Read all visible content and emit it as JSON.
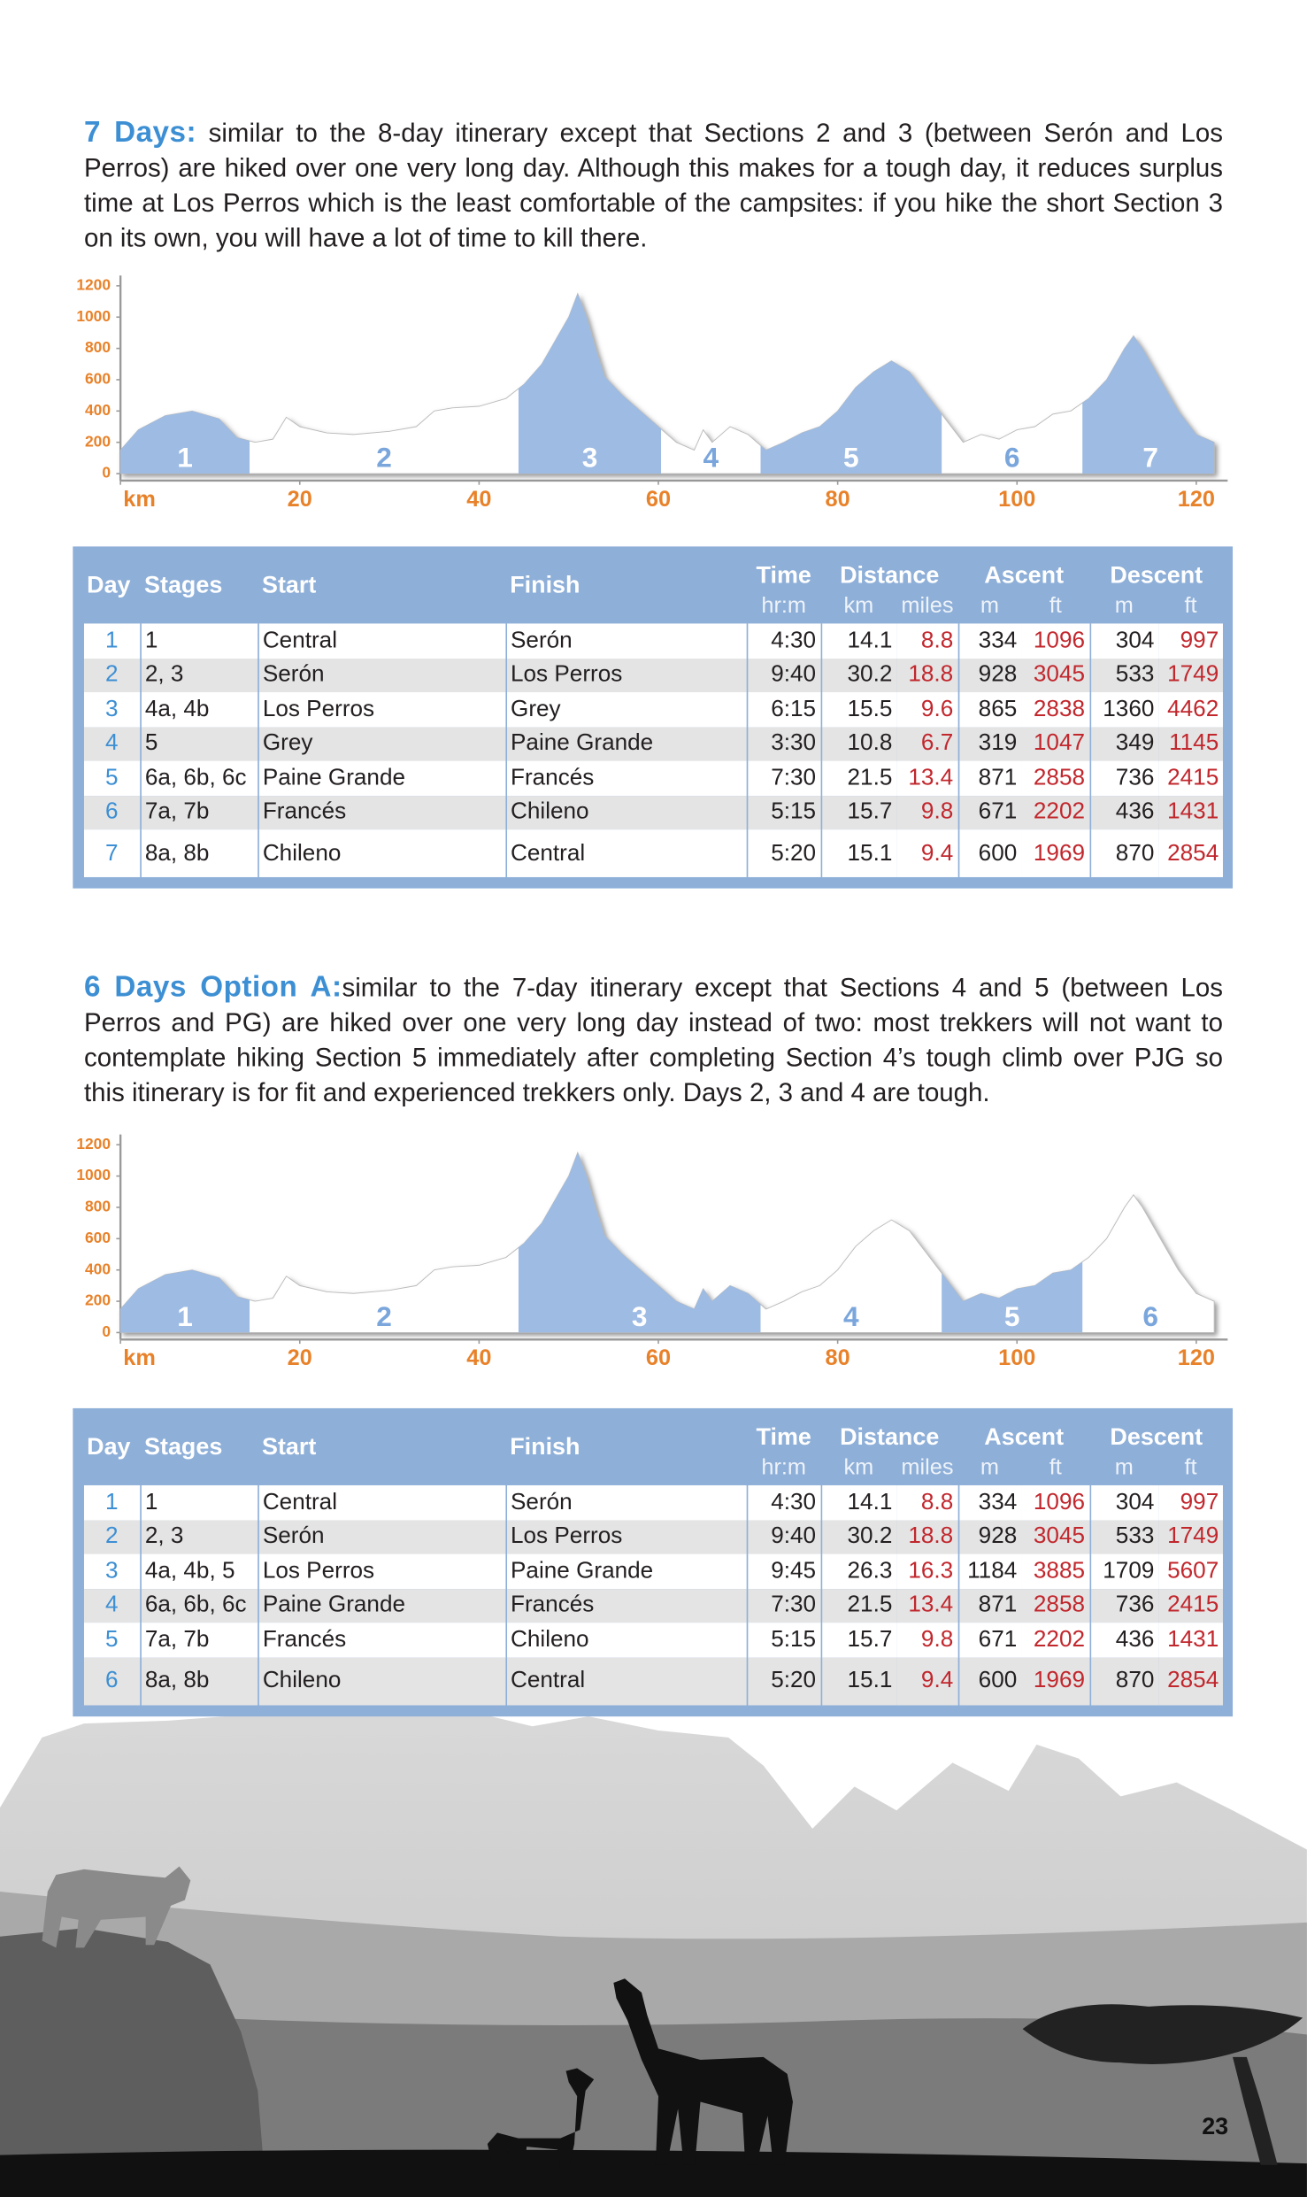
{
  "page_number": "23",
  "itineraries": [
    {
      "heading": "7 Days:",
      "text": "similar to the 8-day itinerary except that Sections 2 and 3 (between Serón and Los Perros) are hiked over one very long day. Although this makes for a tough day, it reduces surplus time at Los Perros which is the least comfortable of the campsites: if you hike the short Section 3 on its own, you will have a lot of time to kill there.",
      "table": {
        "header_top": [
          "Day",
          "Stages",
          "Start",
          "Finish",
          "Time",
          "Distance",
          "Ascent",
          "Descent"
        ],
        "header_sub": [
          "hr:m",
          "km",
          "miles",
          "m",
          "ft",
          "m",
          "ft"
        ],
        "rows": [
          [
            "1",
            "1",
            "Central",
            "Serón",
            "4:30",
            "14.1",
            "8.8",
            "334",
            "1096",
            "304",
            "997"
          ],
          [
            "2",
            "2, 3",
            "Serón",
            "Los Perros",
            "9:40",
            "30.2",
            "18.8",
            "928",
            "3045",
            "533",
            "1749"
          ],
          [
            "3",
            "4a, 4b",
            "Los Perros",
            "Grey",
            "6:15",
            "15.5",
            "9.6",
            "865",
            "2838",
            "1360",
            "4462"
          ],
          [
            "4",
            "5",
            "Grey",
            "Paine Grande",
            "3:30",
            "10.8",
            "6.7",
            "319",
            "1047",
            "349",
            "1145"
          ],
          [
            "5",
            "6a, 6b, 6c",
            "Paine Grande",
            "Francés",
            "7:30",
            "21.5",
            "13.4",
            "871",
            "2858",
            "736",
            "2415"
          ],
          [
            "6",
            "7a, 7b",
            "Francés",
            "Chileno",
            "5:15",
            "15.7",
            "9.8",
            "671",
            "2202",
            "436",
            "1431"
          ],
          [
            "7",
            "8a, 8b",
            "Chileno",
            "Central",
            "5:20",
            "15.1",
            "9.4",
            "600",
            "1969",
            "870",
            "2854"
          ]
        ]
      }
    },
    {
      "heading": "6 Days Option A:",
      "text": "similar to the 7-day itinerary except that Sections 4 and 5 (between Los Perros and PG) are hiked over one very long day instead of two: most trekkers will not want to contemplate hiking Section 5 immediately after completing Section 4’s tough climb over PJG so this itinerary is for fit and experienced trekkers only. Days 2, 3 and 4 are tough.",
      "table": {
        "header_top": [
          "Day",
          "Stages",
          "Start",
          "Finish",
          "Time",
          "Distance",
          "Ascent",
          "Descent"
        ],
        "header_sub": [
          "hr:m",
          "km",
          "miles",
          "m",
          "ft",
          "m",
          "ft"
        ],
        "rows": [
          [
            "1",
            "1",
            "Central",
            "Serón",
            "4:30",
            "14.1",
            "8.8",
            "334",
            "1096",
            "304",
            "997"
          ],
          [
            "2",
            "2, 3",
            "Serón",
            "Los Perros",
            "9:40",
            "30.2",
            "18.8",
            "928",
            "3045",
            "533",
            "1749"
          ],
          [
            "3",
            "4a, 4b, 5",
            "Los Perros",
            "Paine Grande",
            "9:45",
            "26.3",
            "16.3",
            "1184",
            "3885",
            "1709",
            "5607"
          ],
          [
            "4",
            "6a, 6b, 6c",
            "Paine Grande",
            "Francés",
            "7:30",
            "21.5",
            "13.4",
            "871",
            "2858",
            "736",
            "2415"
          ],
          [
            "5",
            "7a, 7b",
            "Francés",
            "Chileno",
            "5:15",
            "15.7",
            "9.8",
            "671",
            "2202",
            "436",
            "1431"
          ],
          [
            "6",
            "8a, 8b",
            "Chileno",
            "Central",
            "5:20",
            "15.1",
            "9.4",
            "600",
            "1969",
            "870",
            "2854"
          ]
        ]
      }
    }
  ],
  "chart_data": [
    {
      "type": "area",
      "shade_color": "#9dbbe3",
      "tick_color": "#e8822a",
      "x": [
        0,
        2,
        5,
        8,
        11,
        13,
        15,
        17,
        18.5,
        20,
        23,
        26,
        30,
        33,
        35,
        37,
        40,
        43,
        45,
        47,
        48,
        49,
        50,
        51,
        52,
        53,
        54,
        56,
        58,
        60,
        62,
        64,
        65,
        66,
        68,
        70,
        72,
        74,
        76,
        78,
        80,
        82,
        84,
        86,
        88,
        90,
        92,
        94,
        96,
        98,
        100,
        102,
        104,
        106,
        108,
        110,
        112,
        113,
        114,
        116,
        118,
        120,
        122
      ],
      "values": [
        150,
        280,
        370,
        400,
        350,
        230,
        200,
        220,
        360,
        300,
        260,
        250,
        270,
        300,
        400,
        420,
        430,
        480,
        570,
        700,
        800,
        900,
        1000,
        1150,
        1000,
        800,
        620,
        500,
        400,
        300,
        200,
        150,
        280,
        200,
        300,
        250,
        150,
        200,
        260,
        300,
        400,
        550,
        650,
        720,
        650,
        500,
        350,
        200,
        250,
        220,
        280,
        300,
        380,
        400,
        480,
        600,
        800,
        880,
        800,
        600,
        400,
        250,
        200
      ],
      "xlim": [
        0,
        123.5
      ],
      "ylim": [
        0,
        1230
      ],
      "xticks": [
        {
          "value": 0,
          "label": "km"
        },
        20,
        40,
        60,
        80,
        100,
        120
      ],
      "yticks": [
        0,
        200,
        400,
        600,
        800,
        1000,
        1200
      ],
      "sections": [
        {
          "label": "1",
          "start": 0,
          "end": 14.4,
          "shaded": true
        },
        {
          "label": "2",
          "start": 14.4,
          "end": 44.4,
          "shaded": false
        },
        {
          "label": "3",
          "start": 44.4,
          "end": 60.3,
          "shaded": true
        },
        {
          "label": "4",
          "start": 60.3,
          "end": 71.4,
          "shaded": false
        },
        {
          "label": "5",
          "start": 71.4,
          "end": 91.6,
          "shaded": true
        },
        {
          "label": "6",
          "start": 91.6,
          "end": 107.3,
          "shaded": false
        },
        {
          "label": "7",
          "start": 107.3,
          "end": 122.5,
          "shaded": true
        }
      ]
    },
    {
      "type": "area",
      "shade_color": "#9dbbe3",
      "tick_color": "#e8822a",
      "x": [
        0,
        2,
        5,
        8,
        11,
        13,
        15,
        17,
        18.5,
        20,
        23,
        26,
        30,
        33,
        35,
        37,
        40,
        43,
        45,
        47,
        48,
        49,
        50,
        51,
        52,
        53,
        54,
        56,
        58,
        60,
        62,
        64,
        65,
        66,
        68,
        70,
        72,
        74,
        76,
        78,
        80,
        82,
        84,
        86,
        88,
        90,
        92,
        94,
        96,
        98,
        100,
        102,
        104,
        106,
        108,
        110,
        112,
        113,
        114,
        116,
        118,
        120,
        122
      ],
      "values": [
        150,
        280,
        370,
        400,
        350,
        230,
        200,
        220,
        360,
        300,
        260,
        250,
        270,
        300,
        400,
        420,
        430,
        480,
        570,
        700,
        800,
        900,
        1000,
        1150,
        1000,
        800,
        620,
        500,
        400,
        300,
        200,
        150,
        280,
        200,
        300,
        250,
        150,
        200,
        260,
        300,
        400,
        550,
        650,
        720,
        650,
        500,
        350,
        200,
        250,
        220,
        280,
        300,
        380,
        400,
        480,
        600,
        800,
        880,
        800,
        600,
        400,
        250,
        200
      ],
      "xlim": [
        0,
        123.5
      ],
      "ylim": [
        0,
        1230
      ],
      "xticks": [
        {
          "value": 0,
          "label": "km"
        },
        20,
        40,
        60,
        80,
        100,
        120
      ],
      "yticks": [
        0,
        200,
        400,
        600,
        800,
        1000,
        1200
      ],
      "sections": [
        {
          "label": "1",
          "start": 0,
          "end": 14.4,
          "shaded": true
        },
        {
          "label": "2",
          "start": 14.4,
          "end": 44.4,
          "shaded": false
        },
        {
          "label": "3",
          "start": 44.4,
          "end": 71.4,
          "shaded": true
        },
        {
          "label": "4",
          "start": 71.4,
          "end": 91.6,
          "shaded": false
        },
        {
          "label": "5",
          "start": 91.6,
          "end": 107.3,
          "shaded": true
        },
        {
          "label": "6",
          "start": 107.3,
          "end": 122.5,
          "shaded": false
        }
      ]
    }
  ]
}
